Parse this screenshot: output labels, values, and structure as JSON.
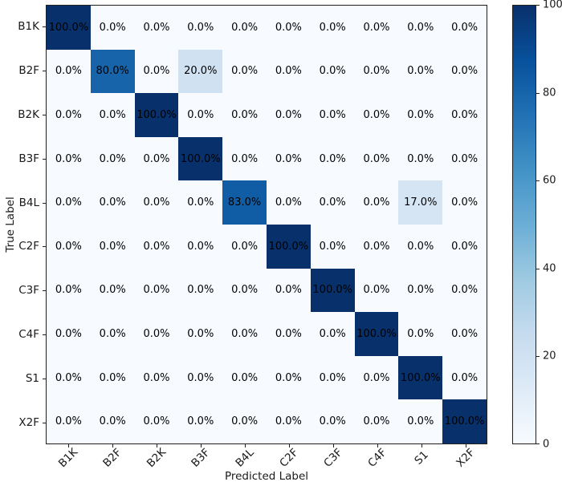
{
  "figure": {
    "xlabel": "Predicted Label",
    "ylabel": "True Label"
  },
  "chart_data": {
    "type": "heatmap",
    "title": "",
    "xlabel": "Predicted Label",
    "ylabel": "True Label",
    "x_labels": [
      "B1K",
      "B2F",
      "B2K",
      "B3F",
      "B4L",
      "C2F",
      "C3F",
      "C4F",
      "S1",
      "X2F"
    ],
    "y_labels": [
      "B1K",
      "B2F",
      "B2K",
      "B3F",
      "B4L",
      "C2F",
      "C3F",
      "C4F",
      "S1",
      "X2F"
    ],
    "values": [
      [
        100.0,
        0.0,
        0.0,
        0.0,
        0.0,
        0.0,
        0.0,
        0.0,
        0.0,
        0.0
      ],
      [
        0.0,
        80.0,
        0.0,
        20.0,
        0.0,
        0.0,
        0.0,
        0.0,
        0.0,
        0.0
      ],
      [
        0.0,
        0.0,
        100.0,
        0.0,
        0.0,
        0.0,
        0.0,
        0.0,
        0.0,
        0.0
      ],
      [
        0.0,
        0.0,
        0.0,
        100.0,
        0.0,
        0.0,
        0.0,
        0.0,
        0.0,
        0.0
      ],
      [
        0.0,
        0.0,
        0.0,
        0.0,
        83.0,
        0.0,
        0.0,
        0.0,
        17.0,
        0.0
      ],
      [
        0.0,
        0.0,
        0.0,
        0.0,
        0.0,
        100.0,
        0.0,
        0.0,
        0.0,
        0.0
      ],
      [
        0.0,
        0.0,
        0.0,
        0.0,
        0.0,
        0.0,
        100.0,
        0.0,
        0.0,
        0.0
      ],
      [
        0.0,
        0.0,
        0.0,
        0.0,
        0.0,
        0.0,
        0.0,
        100.0,
        0.0,
        0.0
      ],
      [
        0.0,
        0.0,
        0.0,
        0.0,
        0.0,
        0.0,
        0.0,
        0.0,
        100.0,
        0.0
      ],
      [
        0.0,
        0.0,
        0.0,
        0.0,
        0.0,
        0.0,
        0.0,
        0.0,
        0.0,
        100.0
      ]
    ],
    "value_suffix": "%",
    "value_decimals": 1,
    "colorbar": {
      "ticks": [
        0,
        20,
        40,
        60,
        80,
        100
      ],
      "vmin": 0,
      "vmax": 100,
      "colormap": "Blues",
      "position": "right"
    },
    "grid": false,
    "legend": false
  },
  "colors": {
    "blues_scale": [
      "#f7fbff",
      "#deebf7",
      "#c6dbef",
      "#9ecae1",
      "#6baed6",
      "#4292c6",
      "#2171b5",
      "#08519c",
      "#08306b"
    ],
    "annotation_text": "#000000",
    "axis": "#1f1f1f",
    "tick_label": "#1a1a1a",
    "background": "#ffffff"
  }
}
